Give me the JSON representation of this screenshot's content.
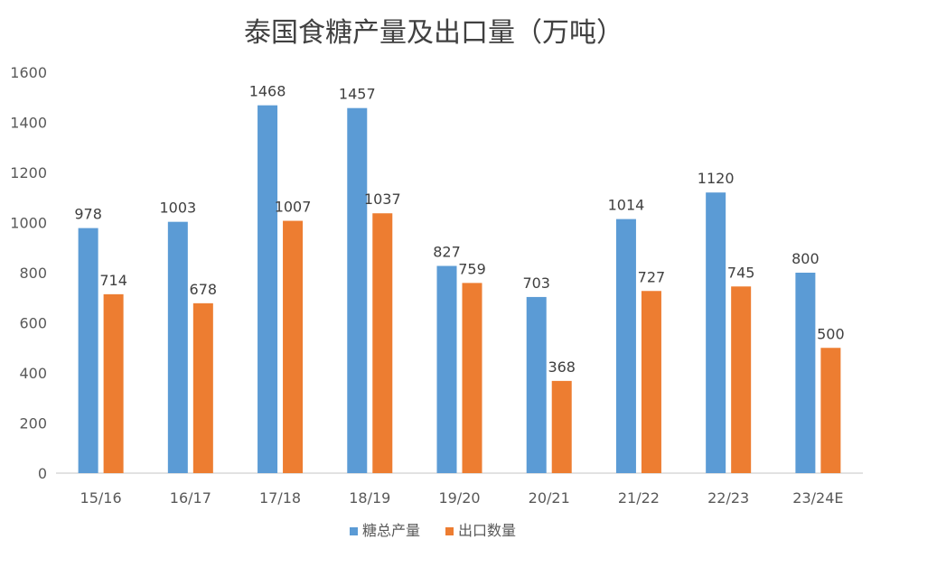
{
  "chart_data": {
    "type": "bar",
    "title": "泰国食糖产量及出口量（万吨）",
    "xlabel": "",
    "ylabel": "",
    "categories": [
      "15/16",
      "16/17",
      "17/18",
      "18/19",
      "19/20",
      "20/21",
      "21/22",
      "22/23",
      "23/24E"
    ],
    "series": [
      {
        "name": "糖总产量",
        "color": "#5b9bd5",
        "values": [
          978,
          1003,
          1468,
          1457,
          827,
          703,
          1014,
          1120,
          800
        ]
      },
      {
        "name": "出口数量",
        "color": "#ed7d31",
        "values": [
          714,
          678,
          1007,
          1037,
          759,
          368,
          727,
          745,
          500
        ]
      }
    ],
    "ylim": [
      0,
      1600
    ],
    "yticks": [
      0,
      200,
      400,
      600,
      800,
      1000,
      1200,
      1400,
      1600
    ],
    "grid": false,
    "legend_position": "bottom",
    "data_labels": true
  }
}
